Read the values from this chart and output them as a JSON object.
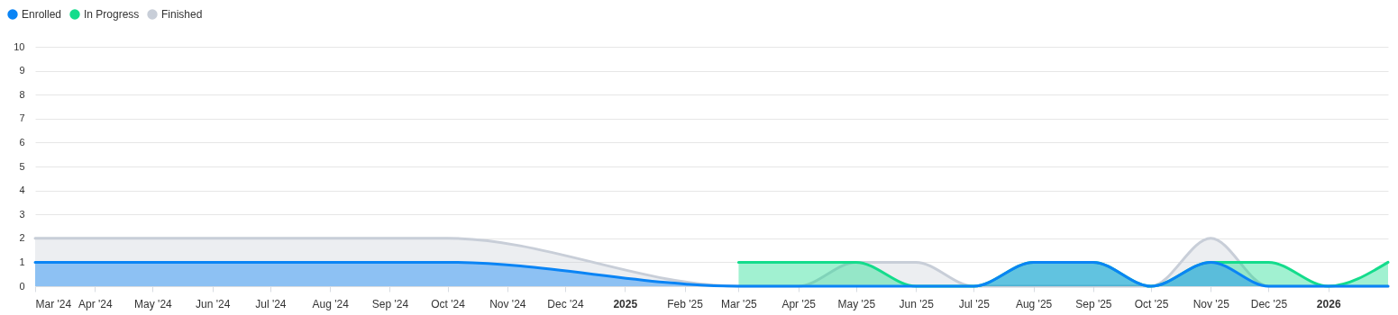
{
  "chart_data": {
    "type": "area",
    "legend": "top left",
    "grid": "y",
    "line_style": "solid",
    "marker": "none",
    "xlim": [
      "2024-03-01",
      "2026-02-01"
    ],
    "xticks": [
      {
        "value": "2024-03-01",
        "label": "Mar '24"
      },
      {
        "value": "2024-04-01",
        "label": "Apr '24"
      },
      {
        "value": "2024-05-01",
        "label": "May '24"
      },
      {
        "value": "2024-06-01",
        "label": "Jun '24"
      },
      {
        "value": "2024-07-01",
        "label": "Jul '24"
      },
      {
        "value": "2024-08-01",
        "label": "Aug '24"
      },
      {
        "value": "2024-09-01",
        "label": "Sep '24"
      },
      {
        "value": "2024-10-01",
        "label": "Oct '24"
      },
      {
        "value": "2024-11-01",
        "label": "Nov '24"
      },
      {
        "value": "2024-12-01",
        "label": "Dec '24"
      },
      {
        "value": "2025-01-01",
        "label": "2025"
      },
      {
        "value": "2025-02-01",
        "label": "Feb '25"
      },
      {
        "value": "2025-03-01",
        "label": "Mar '25"
      },
      {
        "value": "2025-04-01",
        "label": "Apr '25"
      },
      {
        "value": "2025-05-01",
        "label": "May '25"
      },
      {
        "value": "2025-06-01",
        "label": "Jun '25"
      },
      {
        "value": "2025-07-01",
        "label": "Jul '25"
      },
      {
        "value": "2025-08-01",
        "label": "Aug '25"
      },
      {
        "value": "2025-09-01",
        "label": "Sep '25"
      },
      {
        "value": "2025-10-01",
        "label": "Oct '25"
      },
      {
        "value": "2025-11-01",
        "label": "Nov '25"
      },
      {
        "value": "2025-12-01",
        "label": "Dec '25"
      },
      {
        "value": "2026-01-01",
        "label": "2026"
      }
    ],
    "ylim": [
      0,
      10
    ],
    "yticks": [
      0,
      1,
      2,
      3,
      4,
      5,
      6,
      7,
      8,
      9,
      10
    ],
    "series": [
      {
        "name": "Enrolled",
        "color": "#0a84f5",
        "x": [
          "2024-03-01",
          "2024-10-01",
          "2025-03-01",
          "2025-07-01",
          "2025-08-01",
          "2025-09-01",
          "2025-10-01",
          "2025-11-01",
          "2025-12-01",
          "2026-02-01"
        ],
        "values": [
          1,
          1,
          0,
          0,
          1,
          1,
          0,
          1,
          0,
          0
        ]
      },
      {
        "name": "In Progress",
        "color": "#14dc8c",
        "x": [
          "2025-03-01",
          "2025-05-01",
          "2025-06-01",
          "2025-07-01",
          "2025-08-01",
          "2025-09-01",
          "2025-10-01",
          "2025-11-01",
          "2025-12-01",
          "2026-01-01",
          "2026-02-01"
        ],
        "values": [
          1,
          1,
          0,
          0,
          1,
          1,
          0,
          1,
          1,
          0,
          1
        ]
      },
      {
        "name": "Finished",
        "color": "#c8ced8",
        "x": [
          "2024-03-01",
          "2024-10-01",
          "2025-03-01",
          "2025-04-01",
          "2025-05-01",
          "2025-06-01",
          "2025-07-01",
          "2025-10-01",
          "2025-11-01",
          "2025-12-01",
          "2026-02-01"
        ],
        "values": [
          2,
          2,
          0,
          0,
          1,
          1,
          0,
          0,
          2,
          0,
          0
        ]
      }
    ]
  }
}
